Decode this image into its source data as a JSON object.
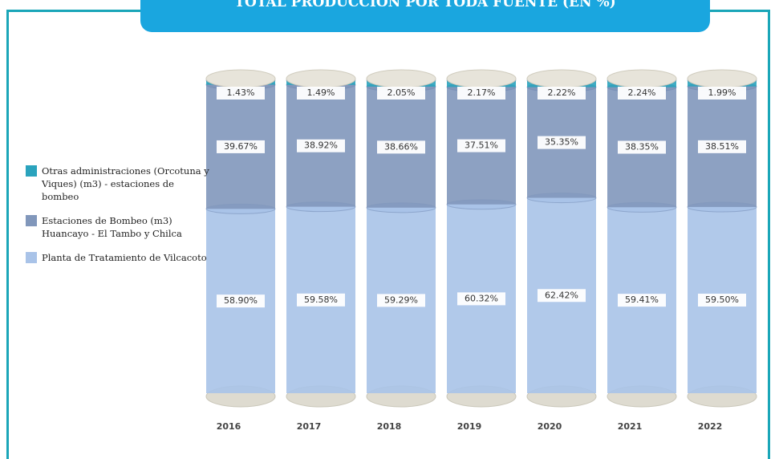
{
  "chart_data": {
    "type": "bar",
    "stacked": true,
    "title": "TOTAL PRODUCCION POR TODA FUENTE (EN %)",
    "categories": [
      "2016",
      "2017",
      "2018",
      "2019",
      "2020",
      "2021",
      "2022"
    ],
    "series": [
      {
        "name": "Planta de Tratamiento de Vilcacoto",
        "color": "#a9c3e8",
        "values": [
          58.9,
          59.58,
          59.29,
          60.32,
          62.42,
          59.41,
          59.5
        ],
        "value_labels": [
          "58.90%",
          "59.58%",
          "59.29%",
          "60.32%",
          "62.42%",
          "59.41%",
          "59.50%"
        ]
      },
      {
        "name": "Estaciones de Bombeo (m3) Huancayo - El Tambo y Chilca",
        "color": "#8197bb",
        "values": [
          39.67,
          38.92,
          38.66,
          37.51,
          35.35,
          38.35,
          38.51
        ],
        "value_labels": [
          "39.67%",
          "38.92%",
          "38.66%",
          "37.51%",
          "35.35%",
          "38.35%",
          "38.51%"
        ]
      },
      {
        "name": "Otras administraciones (Orcotuna y Viques) (m3) - estaciones de bombeo",
        "color": "#2aa3bd",
        "values": [
          1.43,
          1.49,
          2.05,
          2.17,
          2.22,
          2.24,
          1.99
        ],
        "value_labels": [
          "1.43%",
          "1.49%",
          "2.05%",
          "2.17%",
          "2.22%",
          "2.24%",
          "1.99%"
        ]
      }
    ],
    "legend": "left"
  }
}
